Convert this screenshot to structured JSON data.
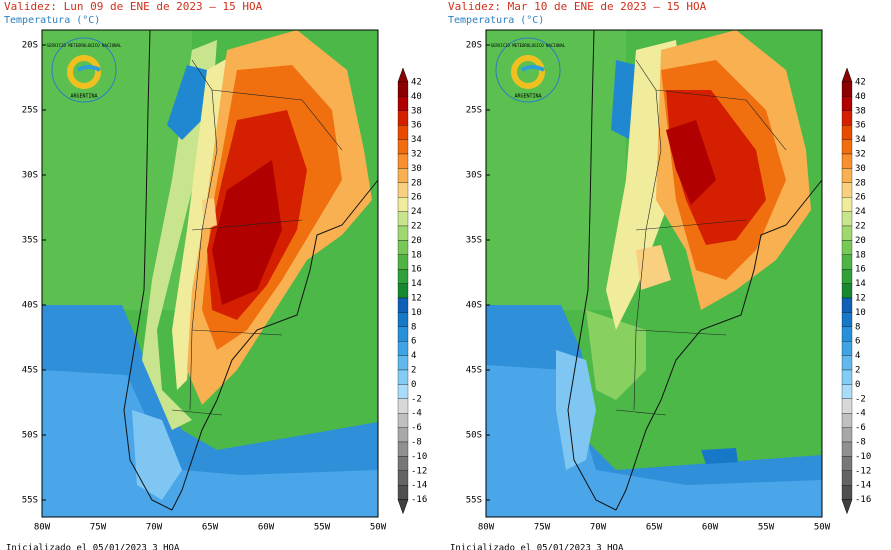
{
  "panels": [
    {
      "validity": "Validez: Lun 09 de ENE de 2023 — 15 HOA",
      "variable": "Temperatura (°C)",
      "initialized": "Inicializado el 05/01/2023 3 HOA"
    },
    {
      "validity": "Validez: Mar 10 de ENE de 2023 — 15 HOA",
      "variable": "Temperatura (°C)",
      "initialized": "Inicializado el 05/01/2023 3 HOA"
    }
  ],
  "logo": {
    "top": "SERVICIO METEOROLOGICO NACIONAL",
    "bottom": "ARGENTINA"
  },
  "lat_labels": [
    "20S",
    "25S",
    "30S",
    "35S",
    "40S",
    "45S",
    "50S",
    "55S"
  ],
  "lon_labels": [
    "80W",
    "75W",
    "70W",
    "65W",
    "60W",
    "55W",
    "50W"
  ],
  "colorbar_labels": [
    42,
    40,
    38,
    36,
    34,
    32,
    30,
    28,
    26,
    24,
    22,
    20,
    18,
    16,
    14,
    12,
    10,
    8,
    6,
    4,
    2,
    0,
    -2,
    -4,
    -6,
    -8,
    -10,
    -12,
    -14,
    -16
  ]
}
